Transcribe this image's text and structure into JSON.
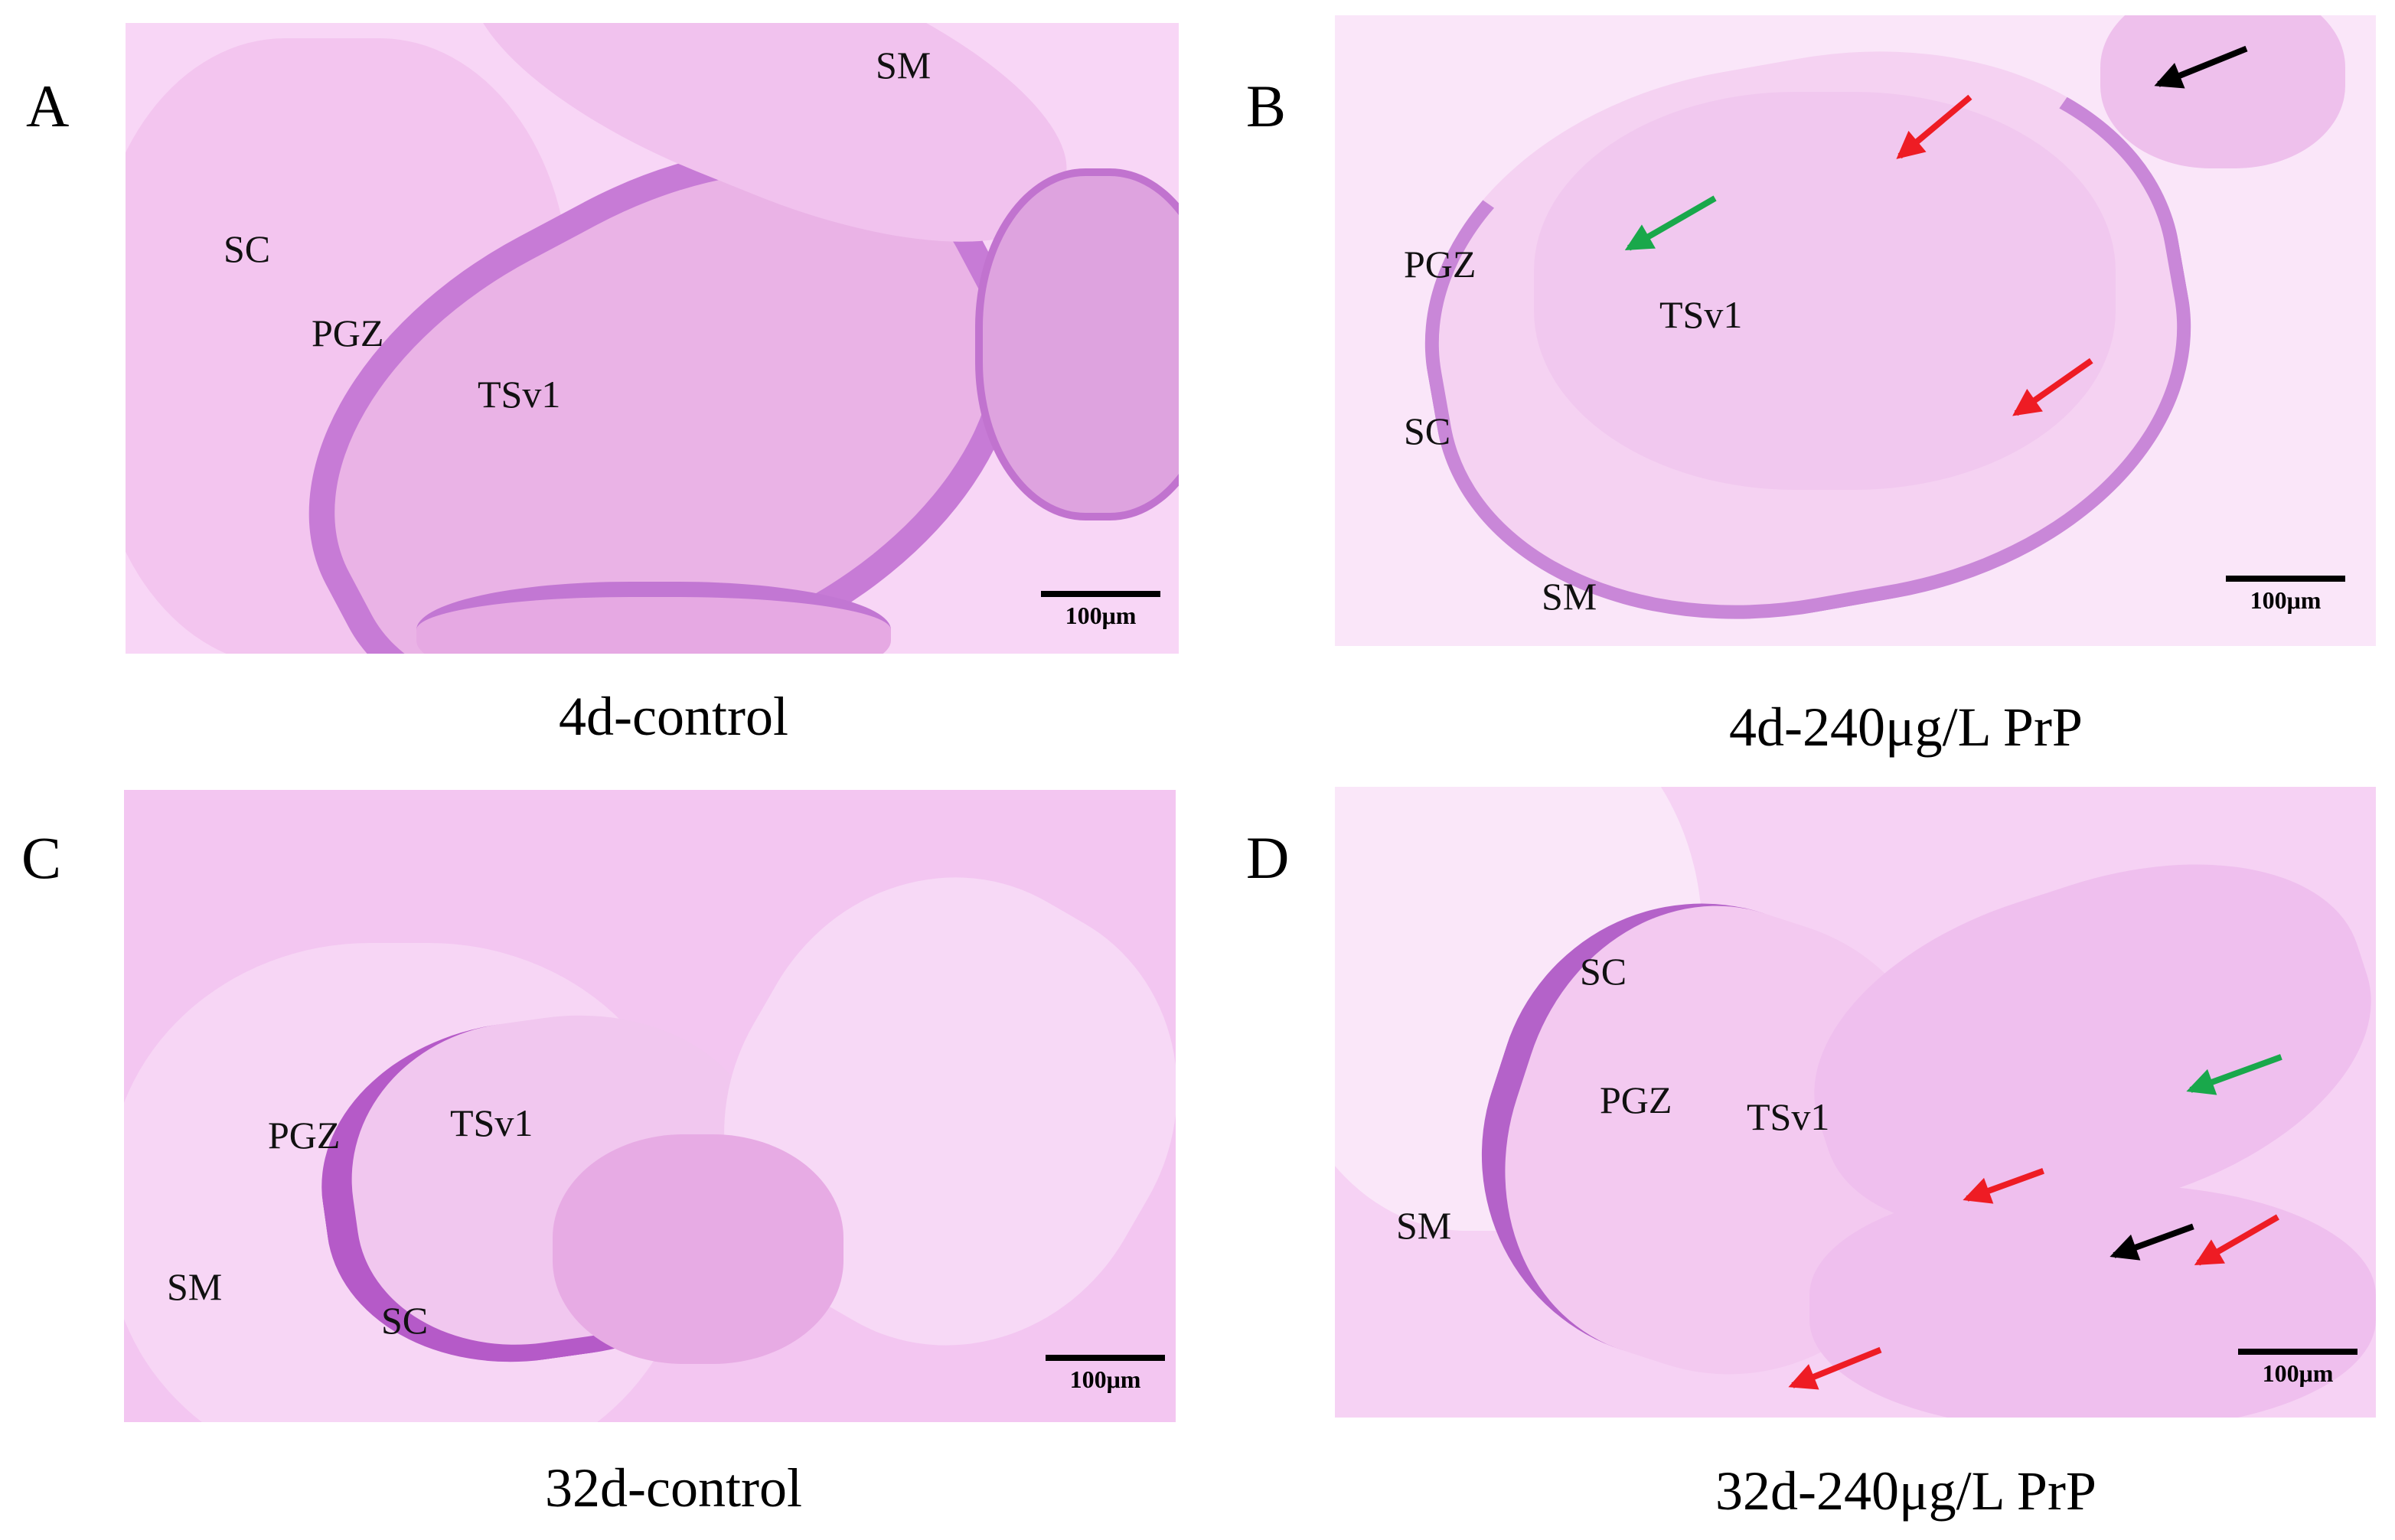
{
  "panels": [
    {
      "letter": "A",
      "caption": "4d-control",
      "labels": {
        "sm": "SM",
        "sc": "SC",
        "pgz": "PGZ",
        "tsv": "TSv1"
      },
      "scale": "100μm"
    },
    {
      "letter": "B",
      "caption": "4d-240μg/L  PrP",
      "labels": {
        "pgz": "PGZ",
        "tsv": "TSv1",
        "sc": "SC",
        "sm": "SM"
      },
      "scale": "100μm"
    },
    {
      "letter": "C",
      "caption": "32d-control",
      "labels": {
        "pgz": "PGZ",
        "tsv": "TSv1",
        "sm": "SM",
        "sc": "SC"
      },
      "scale": "100μm"
    },
    {
      "letter": "D",
      "caption": "32d-240μg/L  PrP",
      "labels": {
        "sc": "SC",
        "pgz": "PGZ",
        "tsv": "TSv1",
        "sm": "SM"
      },
      "scale": "100μm"
    }
  ],
  "colors": {
    "stain_background": "#f8d6f6",
    "stain_tissue": "#efb6ea",
    "stain_cells": "#b45ac8",
    "arrow_red": "#ee1c24",
    "arrow_green": "#19a84b",
    "arrow_black": "#000000"
  }
}
